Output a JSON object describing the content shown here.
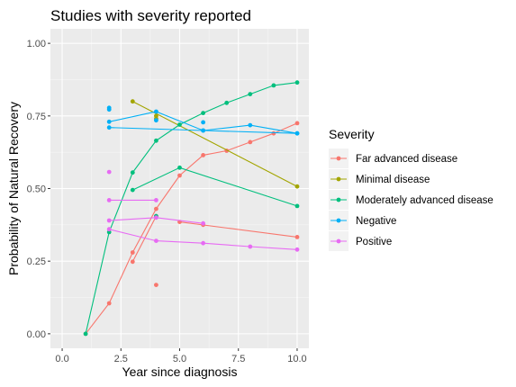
{
  "chart_data": {
    "type": "line",
    "title": "Studies with severity reported",
    "xlabel": "Year since diagnosis",
    "ylabel": "Probability of Natural Recovery",
    "xlim": [
      -0.5,
      10.5
    ],
    "ylim": [
      -0.05,
      1.05
    ],
    "x_ticks": [
      0.0,
      2.5,
      5.0,
      7.5,
      10.0
    ],
    "x_tick_labels": [
      "0.0",
      "2.5",
      "5.0",
      "7.5",
      "10.0"
    ],
    "y_ticks": [
      0.0,
      0.25,
      0.5,
      0.75,
      1.0
    ],
    "y_tick_labels": [
      "0.00",
      "0.25",
      "0.50",
      "0.75",
      "1.00"
    ],
    "grid": true,
    "legend": {
      "title": "Severity",
      "position": "right"
    },
    "series": [
      {
        "name": "Far advanced disease",
        "color": "#F8766D",
        "lines": [
          [
            [
              1,
              0.0
            ],
            [
              2,
              0.105
            ],
            [
              3,
              0.28
            ],
            [
              4,
              0.43
            ],
            [
              5,
              0.545
            ],
            [
              6,
              0.615
            ],
            [
              7,
              0.63
            ],
            [
              8,
              0.66
            ],
            [
              9,
              0.69
            ],
            [
              10,
              0.725
            ]
          ],
          [
            [
              3,
              0.248
            ],
            [
              4,
              0.405
            ]
          ],
          [
            [
              5,
              0.385
            ],
            [
              10,
              0.333
            ]
          ]
        ],
        "points": [
          [
            4,
            0.168
          ],
          [
            6,
            0.375
          ]
        ]
      },
      {
        "name": "Minimal disease",
        "color": "#A3A500",
        "lines": [
          [
            [
              3,
              0.8
            ],
            [
              10,
              0.507
            ]
          ]
        ],
        "points": [
          [
            4,
            0.75
          ],
          [
            4,
            0.74
          ]
        ]
      },
      {
        "name": "Moderately advanced disease",
        "color": "#00BF7D",
        "lines": [
          [
            [
              1,
              0.0
            ],
            [
              2,
              0.35
            ],
            [
              3,
              0.555
            ],
            [
              4,
              0.665
            ],
            [
              5,
              0.72
            ],
            [
              6,
              0.76
            ],
            [
              7,
              0.795
            ],
            [
              8,
              0.825
            ],
            [
              9,
              0.855
            ],
            [
              10,
              0.865
            ]
          ],
          [
            [
              3,
              0.495
            ],
            [
              5,
              0.572
            ],
            [
              10,
              0.44
            ]
          ]
        ],
        "points": [
          [
            4,
            0.405
          ]
        ]
      },
      {
        "name": "Negative",
        "color": "#00B0F6",
        "lines": [
          [
            [
              2,
              0.71
            ],
            [
              6,
              0.7
            ],
            [
              10,
              0.69
            ]
          ],
          [
            [
              2,
              0.73
            ],
            [
              4,
              0.765
            ],
            [
              6,
              0.7
            ],
            [
              8,
              0.718
            ],
            [
              10,
              0.69
            ]
          ]
        ],
        "points": [
          [
            2,
            0.778
          ],
          [
            2,
            0.772
          ],
          [
            4,
            0.735
          ],
          [
            6,
            0.728
          ]
        ]
      },
      {
        "name": "Positive",
        "color": "#E76BF3",
        "lines": [
          [
            [
              2,
              0.46
            ],
            [
              4,
              0.46
            ]
          ],
          [
            [
              2,
              0.39
            ],
            [
              4,
              0.4
            ],
            [
              6,
              0.38
            ]
          ],
          [
            [
              2,
              0.36
            ],
            [
              4,
              0.32
            ],
            [
              6,
              0.312
            ],
            [
              8,
              0.3
            ],
            [
              10,
              0.29
            ]
          ]
        ],
        "points": [
          [
            2,
            0.557
          ]
        ]
      }
    ]
  }
}
